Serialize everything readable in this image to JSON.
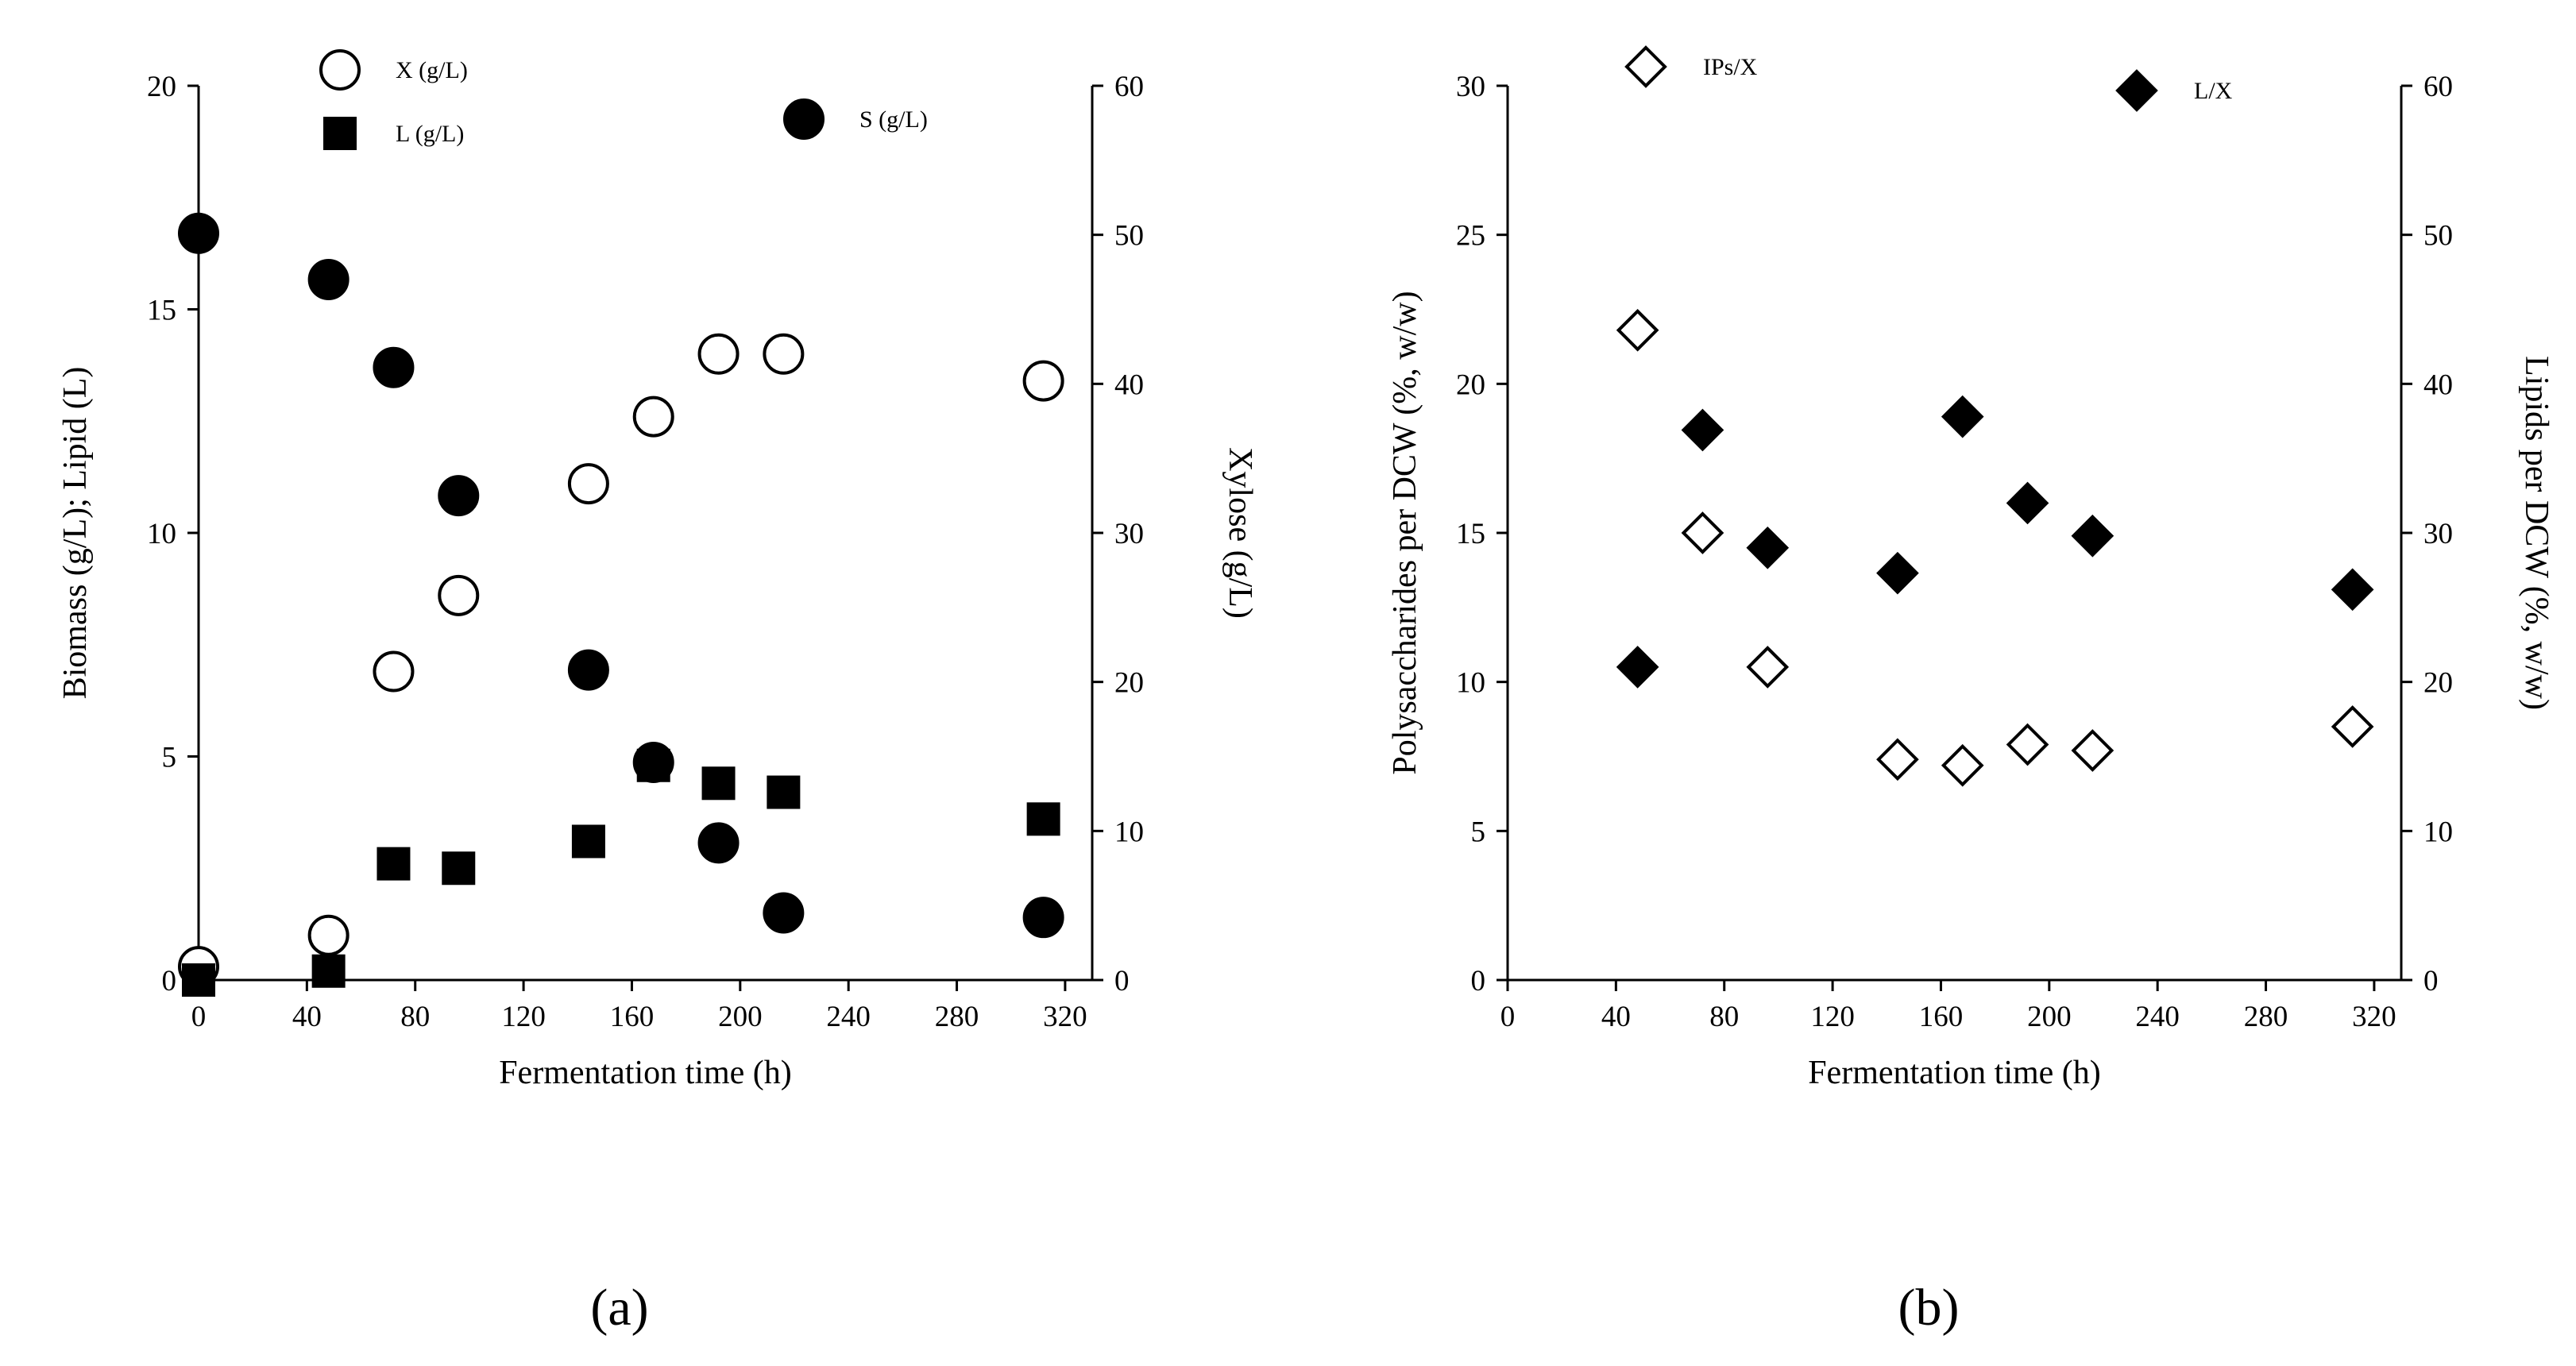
{
  "chart_data": [
    {
      "type": "scatter",
      "panel_label": "(a)",
      "xlabel": "Fermentation time (h)",
      "ylabel_left": "Biomass (g/L); Lipid (L)",
      "ylabel_right": "Xylose (g/L)",
      "xlim": [
        0,
        330
      ],
      "xticks": [
        0,
        40,
        80,
        120,
        160,
        200,
        240,
        280,
        320
      ],
      "ylim_left": [
        0,
        20
      ],
      "yticks_left": [
        0,
        5,
        10,
        15,
        20
      ],
      "ylim_right": [
        0,
        60
      ],
      "yticks_right": [
        0,
        10,
        20,
        30,
        40,
        50,
        60
      ],
      "series": [
        {
          "name": "X (g/L)",
          "axis": "left",
          "marker": "circle-open",
          "x": [
            0,
            48,
            72,
            96,
            144,
            168,
            192,
            216,
            312
          ],
          "y": [
            0.3,
            1.0,
            6.9,
            8.6,
            11.1,
            12.6,
            14.0,
            14.0,
            13.4
          ]
        },
        {
          "name": "L (g/L)",
          "axis": "left",
          "marker": "square-filled",
          "x": [
            0,
            48,
            72,
            96,
            144,
            168,
            192,
            216,
            312
          ],
          "y": [
            0.0,
            0.2,
            2.6,
            2.5,
            3.1,
            4.8,
            4.4,
            4.2,
            3.6
          ]
        },
        {
          "name": "S (g/L)",
          "axis": "right",
          "marker": "circle-filled",
          "x": [
            0,
            48,
            72,
            96,
            144,
            168,
            192,
            216,
            312
          ],
          "y": [
            50.1,
            47.0,
            41.1,
            32.5,
            20.8,
            14.6,
            9.2,
            4.5,
            4.2
          ]
        }
      ],
      "legend": [
        {
          "name": "X (g/L)",
          "marker": "circle-open"
        },
        {
          "name": "L (g/L)",
          "marker": "square-filled"
        },
        {
          "name": "S (g/L)",
          "marker": "circle-filled"
        }
      ]
    },
    {
      "type": "scatter",
      "panel_label": "(b)",
      "xlabel": "Fermentation time (h)",
      "ylabel_left": "Polysaccharides per DCW (%, w/w)",
      "ylabel_right": "Lipids per DCW (%, w/w)",
      "xlim": [
        0,
        330
      ],
      "xticks": [
        0,
        40,
        80,
        120,
        160,
        200,
        240,
        280,
        320
      ],
      "ylim_left": [
        0,
        30
      ],
      "yticks_left": [
        0,
        5,
        10,
        15,
        20,
        25,
        30
      ],
      "ylim_right": [
        0,
        60
      ],
      "yticks_right": [
        0,
        10,
        20,
        30,
        40,
        50,
        60
      ],
      "series": [
        {
          "name": "IPs/X",
          "axis": "left",
          "marker": "diamond-open",
          "x": [
            48,
            72,
            96,
            144,
            168,
            192,
            216,
            312
          ],
          "y": [
            21.8,
            15.0,
            10.5,
            7.4,
            7.2,
            7.9,
            7.7,
            8.5
          ]
        },
        {
          "name": "L/X",
          "axis": "right",
          "marker": "diamond-filled",
          "x": [
            48,
            72,
            96,
            144,
            168,
            192,
            216,
            312
          ],
          "y": [
            21.0,
            36.9,
            29.0,
            27.3,
            37.8,
            32.0,
            29.8,
            26.2
          ]
        }
      ],
      "legend": [
        {
          "name": "IPs/X",
          "marker": "diamond-open"
        },
        {
          "name": "L/X",
          "marker": "diamond-filled"
        }
      ]
    }
  ]
}
